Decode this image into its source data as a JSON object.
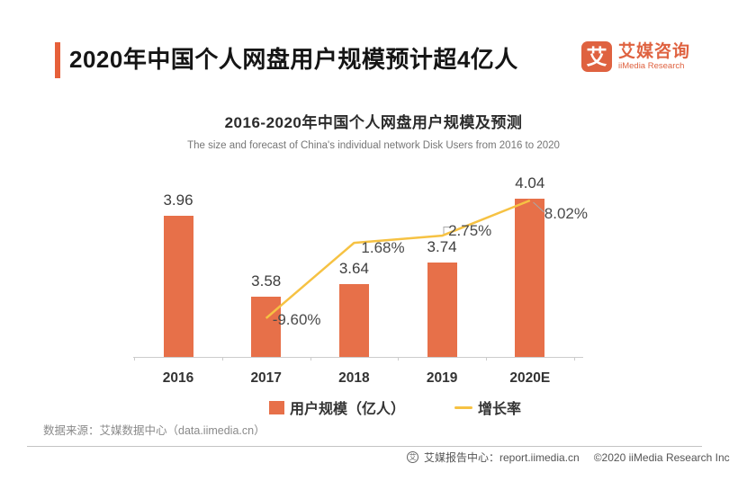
{
  "header": {
    "title": "2020年中国个人网盘用户规模预计超4亿人",
    "logo": {
      "glyph": "艾",
      "name_cn": "艾媒咨询",
      "name_en": "iiMedia Research"
    }
  },
  "chart": {
    "title": "2016-2020年中国个人网盘用户规模及预测",
    "subtitle": "The size and forecast of China's individual network Disk Users from 2016 to 2020"
  },
  "chart_data": {
    "type": "bar",
    "categories": [
      "2016",
      "2017",
      "2018",
      "2019",
      "2020E"
    ],
    "series": [
      {
        "name": "用户规模（亿人）",
        "type": "bar",
        "values": [
          3.96,
          3.58,
          3.64,
          3.74,
          4.04
        ],
        "labels": [
          "3.96",
          "3.58",
          "3.64",
          "3.74",
          "4.04"
        ],
        "color": "#E77049"
      },
      {
        "name": "增长率",
        "type": "line",
        "values": [
          null,
          -9.6,
          1.68,
          2.75,
          8.02
        ],
        "labels": [
          "",
          "-9.60%",
          "1.68%",
          "2.75%",
          "8.02%"
        ],
        "color": "#F6C243"
      }
    ],
    "bar_axis": {
      "min": 3.3,
      "max": 4.08,
      "visible": false
    },
    "line_axis": {
      "visible": false
    },
    "grid": false,
    "legend_position": "bottom",
    "value_labels": true
  },
  "colors": {
    "bar": "#E77049",
    "line": "#F6C243",
    "accent": "#E6603A",
    "logo": "#DF6240",
    "axis": "#cccccc"
  },
  "source": "数据来源：艾媒数据中心（data.iimedia.cn）",
  "footer": {
    "icon_glyph": "艾",
    "site": "艾媒报告中心：report.iimedia.cn",
    "copyright": "©2020  iiMedia Research  Inc"
  }
}
